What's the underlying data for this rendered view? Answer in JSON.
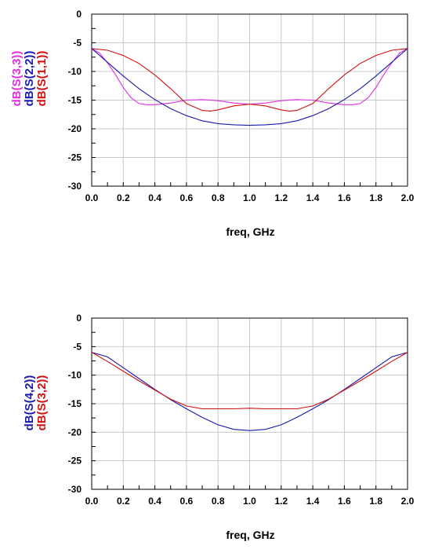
{
  "chart_data": [
    {
      "type": "line",
      "xlabel": "freq, GHz",
      "xlim": [
        0.0,
        2.0
      ],
      "ylim": [
        -30,
        0
      ],
      "xticks": [
        "0.0",
        "0.2",
        "0.4",
        "0.6",
        "0.8",
        "1.0",
        "1.2",
        "1.4",
        "1.6",
        "1.8",
        "2.0"
      ],
      "yticks": [
        "0",
        "-5",
        "-10",
        "-15",
        "-20",
        "-25",
        "-30"
      ],
      "grid": true,
      "legend_placement": "left-vertical",
      "series": [
        {
          "name": "dB(S(3,3))",
          "color": "#e02ee0",
          "x": [
            0.0,
            0.05,
            0.1,
            0.15,
            0.2,
            0.25,
            0.3,
            0.35,
            0.4,
            0.5,
            0.6,
            0.7,
            0.8,
            0.9,
            1.0,
            1.1,
            1.2,
            1.3,
            1.4,
            1.5,
            1.6,
            1.65,
            1.7,
            1.75,
            1.8,
            1.85,
            1.9,
            1.95,
            2.0
          ],
          "y": [
            -6,
            -6.8,
            -8.5,
            -10.5,
            -12.8,
            -14.6,
            -15.6,
            -15.8,
            -15.8,
            -15.5,
            -15.0,
            -14.9,
            -15.1,
            -15.5,
            -15.7,
            -15.5,
            -15.1,
            -14.9,
            -15.0,
            -15.5,
            -15.8,
            -15.8,
            -15.6,
            -14.6,
            -12.8,
            -10.5,
            -8.5,
            -6.8,
            -6
          ]
        },
        {
          "name": "dB(S(2,2))",
          "color": "#1a1aaa",
          "x": [
            0.0,
            0.1,
            0.2,
            0.3,
            0.4,
            0.5,
            0.6,
            0.7,
            0.8,
            0.9,
            1.0,
            1.1,
            1.2,
            1.3,
            1.4,
            1.5,
            1.6,
            1.7,
            1.8,
            1.9,
            2.0
          ],
          "y": [
            -6,
            -8.4,
            -10.8,
            -13.0,
            -14.9,
            -16.5,
            -17.7,
            -18.6,
            -19.1,
            -19.3,
            -19.4,
            -19.3,
            -19.1,
            -18.6,
            -17.7,
            -16.5,
            -14.9,
            -13.0,
            -10.8,
            -8.4,
            -6
          ]
        },
        {
          "name": "dB(S(1,1))",
          "color": "#d01010",
          "x": [
            0.0,
            0.1,
            0.2,
            0.3,
            0.4,
            0.5,
            0.6,
            0.7,
            0.75,
            0.8,
            0.9,
            1.0,
            1.1,
            1.2,
            1.25,
            1.3,
            1.4,
            1.5,
            1.6,
            1.7,
            1.8,
            1.9,
            2.0
          ],
          "y": [
            -6,
            -6.3,
            -7.2,
            -8.6,
            -10.6,
            -13.0,
            -15.6,
            -16.8,
            -16.9,
            -16.7,
            -16.0,
            -15.7,
            -16.0,
            -16.7,
            -16.9,
            -16.8,
            -15.6,
            -13.0,
            -10.6,
            -8.6,
            -7.2,
            -6.3,
            -6
          ]
        }
      ]
    },
    {
      "type": "line",
      "xlabel": "freq, GHz",
      "xlim": [
        0.0,
        2.0
      ],
      "ylim": [
        -30,
        0
      ],
      "xticks": [
        "0.0",
        "0.2",
        "0.4",
        "0.6",
        "0.8",
        "1.0",
        "1.2",
        "1.4",
        "1.6",
        "1.8",
        "2.0"
      ],
      "yticks": [
        "0",
        "-5",
        "-10",
        "-15",
        "-20",
        "-25",
        "-30"
      ],
      "grid": true,
      "legend_placement": "left-vertical",
      "series": [
        {
          "name": "dB(S(4,2))",
          "color": "#1a1aaa",
          "x": [
            0.0,
            0.1,
            0.2,
            0.3,
            0.4,
            0.5,
            0.6,
            0.7,
            0.8,
            0.9,
            1.0,
            1.1,
            1.2,
            1.3,
            1.4,
            1.5,
            1.6,
            1.7,
            1.8,
            1.9,
            2.0
          ],
          "y": [
            -6,
            -6.8,
            -8.7,
            -10.6,
            -12.5,
            -14.3,
            -15.9,
            -17.4,
            -18.7,
            -19.5,
            -19.7,
            -19.5,
            -18.7,
            -17.4,
            -15.9,
            -14.3,
            -12.5,
            -10.6,
            -8.7,
            -6.8,
            -6
          ]
        },
        {
          "name": "dB(S(3,2))",
          "color": "#d01010",
          "x": [
            0.0,
            0.1,
            0.2,
            0.3,
            0.4,
            0.5,
            0.6,
            0.7,
            0.8,
            0.9,
            1.0,
            1.1,
            1.2,
            1.3,
            1.4,
            1.5,
            1.6,
            1.7,
            1.8,
            1.9,
            2.0
          ],
          "y": [
            -6,
            -7.6,
            -9.3,
            -11.0,
            -12.6,
            -14.2,
            -15.4,
            -15.9,
            -15.9,
            -15.9,
            -15.8,
            -15.9,
            -15.9,
            -15.9,
            -15.4,
            -14.2,
            -12.6,
            -11.0,
            -9.3,
            -7.6,
            -6
          ]
        }
      ]
    }
  ]
}
